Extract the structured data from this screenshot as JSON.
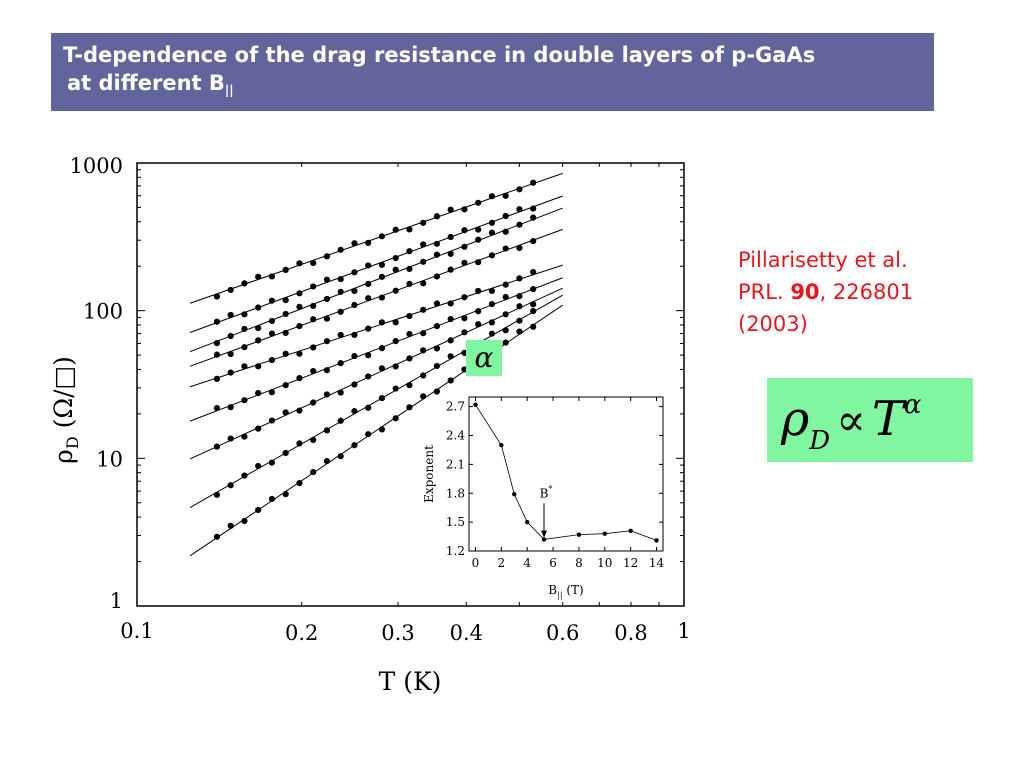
{
  "title": {
    "line1": "T-dependence of the drag resistance in double layers of p-GaAs",
    "line2_prefix": "at different B",
    "line2_sub": "||"
  },
  "citation": {
    "line1": "Pillarisetty et al.",
    "line2_prefix": "PRL. ",
    "line2_bold": "90",
    "line2_suffix": ", 226801",
    "line3": "(2003)"
  },
  "formula": {
    "rho": "ρ",
    "sub": "D",
    "prop": "∝",
    "T": "T",
    "sup": "α"
  },
  "alpha_label": "α",
  "chart_data": [
    {
      "type": "scatter",
      "xscale": "log",
      "yscale": "log",
      "xlabel": "T (K)",
      "ylabel": {
        "rho": "ρ",
        "sub": "D",
        "rest": " (Ω/□)"
      },
      "xlim": [
        0.1,
        1
      ],
      "ylim": [
        1,
        1000
      ],
      "xticks": [
        {
          "v": 0.1,
          "label": "0.1"
        },
        {
          "v": 0.2,
          "label": "0.2"
        },
        {
          "v": 0.3,
          "label": "0.3"
        },
        {
          "v": 0.4,
          "label": "0.4"
        },
        {
          "v": 0.6,
          "label": "0.6"
        },
        {
          "v": 0.8,
          "label": "0.8"
        },
        {
          "v": 1,
          "label": "1"
        }
      ],
      "yticks": [
        {
          "v": 1,
          "label": "1"
        },
        {
          "v": 10,
          "label": "10"
        },
        {
          "v": 100,
          "label": "100"
        },
        {
          "v": 1000,
          "label": "1000"
        }
      ],
      "fit_x_range": [
        0.125,
        0.6
      ],
      "series": [
        {
          "x0": 0.14,
          "y0": 130,
          "x1": 0.53,
          "y1": 725
        },
        {
          "x0": 0.14,
          "y0": 83,
          "x1": 0.53,
          "y1": 505
        },
        {
          "x0": 0.14,
          "y0": 62,
          "x1": 0.53,
          "y1": 415
        },
        {
          "x0": 0.14,
          "y0": 49,
          "x1": 0.53,
          "y1": 300
        },
        {
          "x0": 0.14,
          "y0": 35,
          "x1": 0.53,
          "y1": 175
        },
        {
          "x0": 0.14,
          "y0": 21,
          "x1": 0.53,
          "y1": 140
        },
        {
          "x0": 0.14,
          "y0": 12,
          "x1": 0.53,
          "y1": 115
        },
        {
          "x0": 0.14,
          "y0": 5.9,
          "x1": 0.53,
          "y1": 98
        },
        {
          "x0": 0.14,
          "y0": 2.9,
          "x1": 0.53,
          "y1": 80
        }
      ]
    },
    {
      "type": "line",
      "xlabel": {
        "main": "B",
        "sub": "||",
        "rest": " (T)"
      },
      "ylabel": "Exponent",
      "xlim": [
        -0.5,
        14.5
      ],
      "ylim": [
        1.2,
        2.8
      ],
      "xticks": [
        0,
        2,
        4,
        6,
        8,
        10,
        12,
        14
      ],
      "yticks": [
        {
          "v": 1.2,
          "label": "1.2"
        },
        {
          "v": 1.5,
          "label": "1.5"
        },
        {
          "v": 1.8,
          "label": "1.8"
        },
        {
          "v": 2.1,
          "label": "2.1"
        },
        {
          "v": 2.4,
          "label": "2.4"
        },
        {
          "v": 2.7,
          "label": "2.7"
        }
      ],
      "x": [
        0,
        2,
        3,
        4,
        5.3,
        8,
        10,
        12,
        14
      ],
      "y": [
        2.72,
        2.3,
        1.79,
        1.5,
        1.32,
        1.37,
        1.38,
        1.41,
        1.31
      ],
      "annotation": {
        "label": "B",
        "sup": "*",
        "x": 5.3
      }
    }
  ]
}
